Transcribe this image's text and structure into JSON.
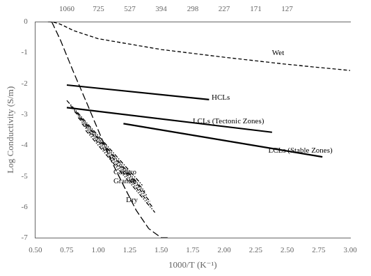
{
  "chart_data": {
    "type": "line",
    "xlabel": "1000/T (K⁻¹)",
    "ylabel": "Log Conductivity (S/m)",
    "xlim": [
      0.5,
      3.0
    ],
    "ylim": [
      -7,
      0
    ],
    "xticks": [
      {
        "value": 0.5,
        "label": "0.50"
      },
      {
        "value": 0.75,
        "label": "0.75"
      },
      {
        "value": 1.0,
        "label": "1.00"
      },
      {
        "value": 1.25,
        "label": "1.25"
      },
      {
        "value": 1.5,
        "label": "1.50"
      },
      {
        "value": 1.75,
        "label": "1.75"
      },
      {
        "value": 2.0,
        "label": "2.00"
      },
      {
        "value": 2.25,
        "label": "2.25"
      },
      {
        "value": 2.5,
        "label": "2.50"
      },
      {
        "value": 2.75,
        "label": "2.75"
      },
      {
        "value": 3.0,
        "label": "3.00"
      }
    ],
    "yticks": [
      -7,
      -6,
      -5,
      -4,
      -3,
      -2,
      -1,
      0
    ],
    "x2lim": [
      0.5,
      3.0
    ],
    "x2ticks": [
      {
        "value": 0.7501,
        "label": "1060"
      },
      {
        "value": 1.0019,
        "label": "725"
      },
      {
        "value": 1.2498,
        "label": "527"
      },
      {
        "value": 1.4989,
        "label": "394"
      },
      {
        "value": 1.7509,
        "label": "298"
      },
      {
        "value": 1.9994,
        "label": "227"
      },
      {
        "value": 2.2515,
        "label": "171"
      },
      {
        "value": 2.4991,
        "label": "127"
      }
    ],
    "grid": false,
    "series": [
      {
        "x": [
          0.6,
          0.65,
          0.68,
          0.72,
          0.8,
          1.0,
          1.5,
          2.0,
          2.5,
          3.0
        ],
        "values": [
          0.0,
          -0.02,
          -0.05,
          -0.12,
          -0.28,
          -0.55,
          -0.9,
          -1.15,
          -1.38,
          -1.58
        ],
        "color": "#000000",
        "line_style": "dashed"
      },
      {
        "x": [
          0.63,
          0.7,
          0.8,
          0.9,
          1.0,
          1.1,
          1.2,
          1.3,
          1.4,
          1.5,
          1.57
        ],
        "values": [
          0.0,
          -0.6,
          -1.6,
          -2.55,
          -3.52,
          -4.48,
          -5.3,
          -6.1,
          -6.7,
          -7.0,
          -7.0
        ],
        "color": "#000000",
        "line_style": "longdashed"
      },
      {
        "x": [
          0.75,
          1.35
        ],
        "values": [
          -2.55,
          -5.3
        ],
        "color": "#000000",
        "line_style": "dashdot"
      },
      {
        "x": [
          0.78,
          1.37
        ],
        "values": [
          -2.72,
          -5.5
        ],
        "color": "#000000",
        "line_style": "dashdot"
      },
      {
        "x": [
          0.81,
          1.39
        ],
        "values": [
          -2.9,
          -5.65
        ],
        "color": "#000000",
        "line_style": "dashdot"
      },
      {
        "x": [
          0.84,
          1.41
        ],
        "values": [
          -3.1,
          -5.82
        ],
        "color": "#000000",
        "line_style": "dashdotdot"
      },
      {
        "x": [
          0.87,
          1.43
        ],
        "values": [
          -3.3,
          -6.0
        ],
        "color": "#000000",
        "line_style": "dashdotdot"
      },
      {
        "x": [
          0.9,
          1.45
        ],
        "values": [
          -3.52,
          -6.18
        ],
        "color": "#000000",
        "line_style": "dashdotdot"
      },
      {
        "x": [
          0.75,
          1.88
        ],
        "values": [
          -2.05,
          -2.52
        ],
        "color": "#000000",
        "line_style": "solid"
      },
      {
        "x": [
          0.75,
          2.38
        ],
        "values": [
          -2.78,
          -3.58
        ],
        "color": "#000000",
        "line_style": "solid"
      },
      {
        "x": [
          1.2,
          2.78
        ],
        "values": [
          -3.3,
          -4.38
        ],
        "color": "#000000",
        "line_style": "solid"
      }
    ],
    "annotations": [
      {
        "text": "Wet",
        "x": 2.38,
        "y": -1.02
      },
      {
        "text": "HCLs",
        "x": 1.9,
        "y": -2.47
      },
      {
        "text": "LCLs (Tectonic Zones)",
        "x": 1.75,
        "y": -3.22
      },
      {
        "text": "LCLs (Stable Zones)",
        "x": 2.35,
        "y": -4.18
      },
      {
        "text": "Gabbro",
        "x": 1.12,
        "y": -4.88
      },
      {
        "text": "Granite",
        "x": 1.12,
        "y": -5.18
      },
      {
        "text": "Dry",
        "x": 1.22,
        "y": -5.78
      }
    ]
  }
}
